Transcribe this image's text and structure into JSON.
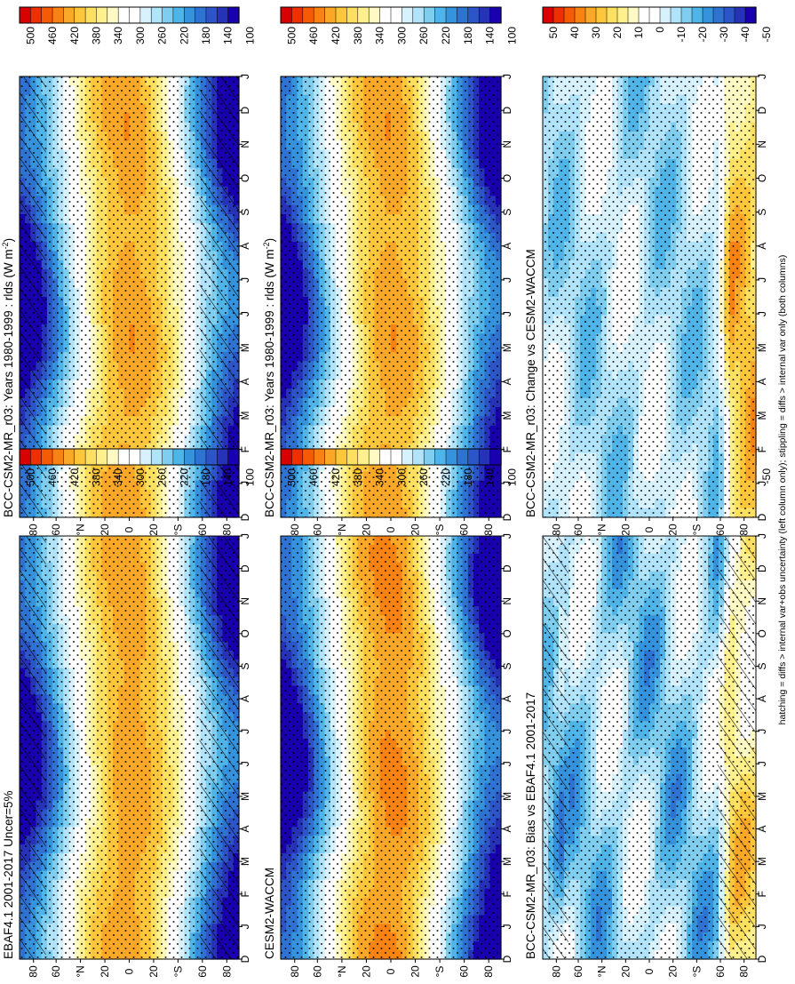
{
  "figure": {
    "footnote": "hatching = diffs > internal var+obs uncertainty (left column only); stippling = diffs > internal var only (both columns)"
  },
  "chart_data": [
    {
      "id": "model-clim",
      "type": "heatmap",
      "title": "BCC-CSM2-MR_r03: Years 1980-1999 : rlds (W m",
      "title_sup": "-2",
      "title_end": ")",
      "x_months": [
        "D",
        "J",
        "F",
        "M",
        "A",
        "M",
        "J",
        "J",
        "A",
        "S",
        "O",
        "N",
        "D",
        "J"
      ],
      "y_ticks": [
        "80",
        "60",
        "°N",
        "20",
        "0",
        "20",
        "°S",
        "60",
        "80"
      ],
      "colorbar": [
        "500",
        "460",
        "420",
        "380",
        "340",
        "300",
        "260",
        "220",
        "180",
        "140",
        "100"
      ],
      "kind": "clim",
      "hatch": true,
      "variant": 0
    },
    {
      "id": "model-clim-2",
      "type": "heatmap",
      "title": "BCC-CSM2-MR_r03: Years 1980-1999 : rlds (W m",
      "title_sup": "-2",
      "title_end": ")",
      "x_months": [
        "D",
        "J",
        "F",
        "M",
        "A",
        "M",
        "J",
        "J",
        "A",
        "S",
        "O",
        "N",
        "D",
        "J"
      ],
      "y_ticks": [
        "80",
        "60",
        "°N",
        "20",
        "0",
        "20",
        "°S",
        "60",
        "80"
      ],
      "colorbar": [
        "500",
        "460",
        "420",
        "380",
        "340",
        "300",
        "260",
        "220",
        "180",
        "140",
        "100"
      ],
      "kind": "clim",
      "hatch": false,
      "variant": 0
    },
    {
      "id": "obs-clim",
      "type": "heatmap",
      "title": "EBAF4.1 2001-2017 Uncer=5%",
      "x_months": [
        "D",
        "J",
        "F",
        "M",
        "A",
        "M",
        "J",
        "J",
        "A",
        "S",
        "O",
        "N",
        "D",
        "J"
      ],
      "y_ticks": [
        "80",
        "60",
        "°N",
        "20",
        "0",
        "20",
        "°S",
        "60",
        "80"
      ],
      "colorbar": [
        "500",
        "460",
        "420",
        "380",
        "340",
        "300",
        "260",
        "220",
        "180",
        "140",
        "100"
      ],
      "kind": "clim",
      "hatch": true,
      "variant": 1
    },
    {
      "id": "ref-model-clim",
      "type": "heatmap",
      "title": "CESM2-WACCM",
      "x_months": [
        "D",
        "J",
        "F",
        "M",
        "A",
        "M",
        "J",
        "J",
        "A",
        "S",
        "O",
        "N",
        "D",
        "J"
      ],
      "y_ticks": [
        "80",
        "60",
        "°N",
        "20",
        "0",
        "20",
        "°S",
        "60",
        "80"
      ],
      "colorbar": [
        "500",
        "460",
        "420",
        "380",
        "340",
        "300",
        "260",
        "220",
        "180",
        "140",
        "100"
      ],
      "kind": "clim",
      "hatch": false,
      "variant": 2
    },
    {
      "id": "bias",
      "type": "heatmap",
      "title": "BCC-CSM2-MR_r03: Bias vs EBAF4.1 2001-2017",
      "x_months": [
        "D",
        "J",
        "F",
        "M",
        "A",
        "M",
        "J",
        "J",
        "A",
        "S",
        "O",
        "N",
        "D",
        "J"
      ],
      "y_ticks": [
        "80",
        "60",
        "°N",
        "20",
        "0",
        "20",
        "°S",
        "60",
        "80"
      ],
      "colorbar": [
        "50",
        "40",
        "30",
        "20",
        "10",
        "0",
        "-10",
        "-20",
        "-30",
        "-40",
        "-50"
      ],
      "kind": "diff",
      "hatch": true,
      "variant": 3
    },
    {
      "id": "change",
      "type": "heatmap",
      "title": "BCC-CSM2-MR_r03: Change vs CESM2-WACCM",
      "x_months": [
        "D",
        "J",
        "F",
        "M",
        "A",
        "M",
        "J",
        "J",
        "A",
        "S",
        "O",
        "N",
        "D",
        "J"
      ],
      "y_ticks": [
        "80",
        "60",
        "°N",
        "20",
        "0",
        "20",
        "°S",
        "60",
        "80"
      ],
      "colorbar": [
        "50",
        "40",
        "30",
        "20",
        "10",
        "0",
        "-10",
        "-20",
        "-30",
        "-40",
        "-50"
      ],
      "kind": "diff",
      "hatch": false,
      "variant": 4
    }
  ],
  "palette": [
    "#d90000",
    "#ee2f00",
    "#f55a05",
    "#f98312",
    "#fba727",
    "#fdc63b",
    "#fde060",
    "#fff08e",
    "#fffac4",
    "#ffffff",
    "#ffffff",
    "#d7f1fd",
    "#b1e3fb",
    "#80ceef",
    "#4fb4e8",
    "#3592dd",
    "#2f73d2",
    "#2c55c7",
    "#2633b9",
    "#1900ae"
  ]
}
